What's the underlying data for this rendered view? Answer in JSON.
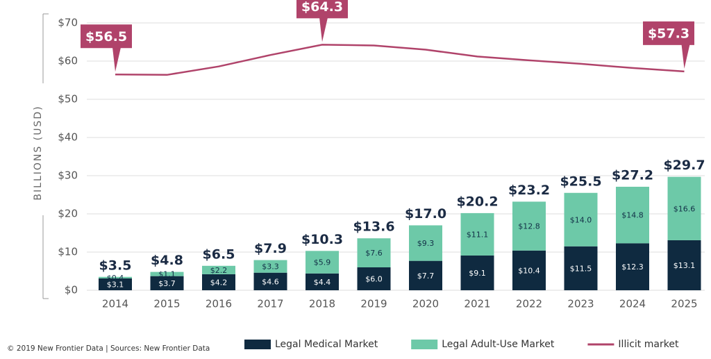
{
  "chart_data": {
    "type": "bar",
    "y_label": "BILLIONS (USD)",
    "footnote": "© 2019 New Frontier Data | Sources: New Frontier Data",
    "categories": [
      "2014",
      "2015",
      "2016",
      "2017",
      "2018",
      "2019",
      "2020",
      "2021",
      "2022",
      "2023",
      "2024",
      "2025"
    ],
    "ylim": [
      0,
      70
    ],
    "yticks": [
      {
        "value": 0,
        "label": "$0"
      },
      {
        "value": 10,
        "label": "$10"
      },
      {
        "value": 20,
        "label": "$20"
      },
      {
        "value": 30,
        "label": "$30"
      },
      {
        "value": 40,
        "label": "$40"
      },
      {
        "value": 50,
        "label": "$50"
      },
      {
        "value": 60,
        "label": "$60"
      },
      {
        "value": 70,
        "label": "$70"
      }
    ],
    "grid": true,
    "series": [
      {
        "name": "Legal Medical Market",
        "type": "bar",
        "color": "#0f2a40",
        "values": [
          3.1,
          3.7,
          4.2,
          4.6,
          4.4,
          6.0,
          7.7,
          9.1,
          10.4,
          11.5,
          12.3,
          13.1
        ],
        "value_labels": [
          "$3.1",
          "$3.7",
          "$4.2",
          "$4.6",
          "$4.4",
          "$6.0",
          "$7.7",
          "$9.1",
          "$10.4",
          "$11.5",
          "$12.3",
          "$13.1"
        ]
      },
      {
        "name": "Legal Adult-Use Market",
        "type": "bar",
        "color": "#6dc9a8",
        "values": [
          0.4,
          1.1,
          2.2,
          3.3,
          5.9,
          7.6,
          9.3,
          11.1,
          12.8,
          14.0,
          14.8,
          16.6
        ],
        "value_labels": [
          "$0.4",
          "$1.1",
          "$2.2",
          "$3.3",
          "$5.9",
          "$7.6",
          "$9.3",
          "$11.1",
          "$12.8",
          "$14.0",
          "$14.8",
          "$16.6"
        ]
      },
      {
        "name": "Illicit market",
        "type": "line",
        "color": "#b0436a",
        "values": [
          56.5,
          56.4,
          58.6,
          61.6,
          64.3,
          64.1,
          63.0,
          61.2,
          60.2,
          59.3,
          58.2,
          57.3
        ],
        "value_labels": [
          "$56.5",
          null,
          null,
          null,
          "$64.3",
          null,
          null,
          null,
          null,
          null,
          null,
          "$57.3"
        ]
      }
    ],
    "totals": {
      "values": [
        3.5,
        4.8,
        6.5,
        7.9,
        10.3,
        13.6,
        17.0,
        20.2,
        23.2,
        25.5,
        27.2,
        29.7
      ],
      "value_labels": [
        "$3.5",
        "$4.8",
        "$6.5",
        "$7.9",
        "$10.3",
        "$13.6",
        "$17.0",
        "$20.2",
        "$23.2",
        "$25.5",
        "$27.2",
        "$29.7"
      ]
    }
  }
}
